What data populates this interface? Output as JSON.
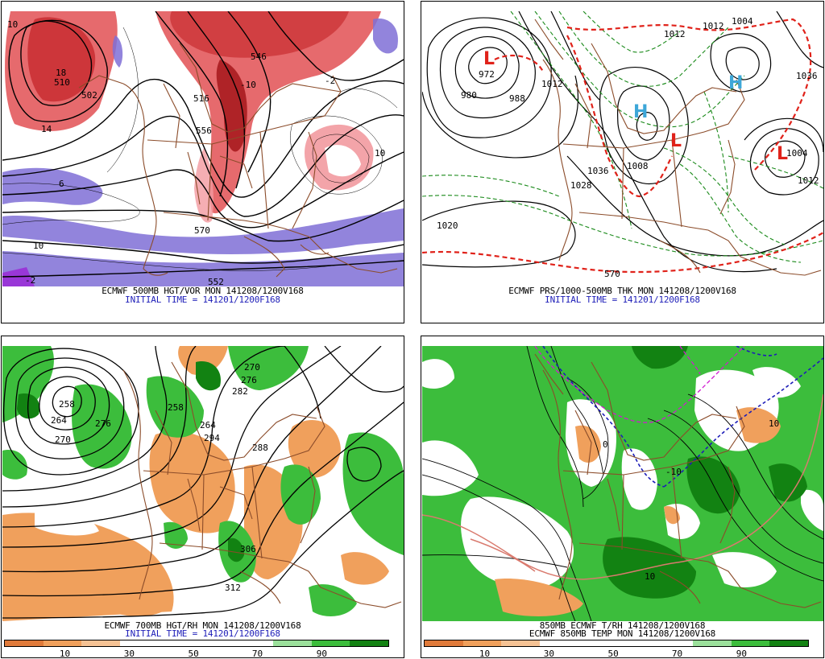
{
  "panels": {
    "tl": {
      "caption_line1": "ECMWF 500MB HGT/VOR MON 141208/1200V168",
      "caption_line2": "INITIAL TIME = 141201/1200F168",
      "contour_labels": [
        "10",
        "18",
        "510",
        "502",
        "516",
        "556",
        "546",
        "570",
        "552",
        "-2",
        "6",
        "10",
        "14",
        "-10",
        "10",
        "-2"
      ]
    },
    "tr": {
      "caption_line1": "ECMWF PRS/1000-500MB THK MON 141208/1200V168",
      "caption_line2": "INITIAL TIME = 141201/1200F168",
      "contour_labels": [
        "972",
        "980",
        "988",
        "1012",
        "1036",
        "1028",
        "1008",
        "1020",
        "1004",
        "1012",
        "1036",
        "1012",
        "570",
        "1012",
        "1004"
      ],
      "pressure_centers": [
        "L",
        "L",
        "L",
        "H",
        "H"
      ]
    },
    "bl": {
      "caption_line1": "ECMWF 700MB HGT/RH MON 141208/1200V168",
      "caption_line2": "INITIAL TIME = 141201/1200F168",
      "contour_labels": [
        "258",
        "264",
        "270",
        "276",
        "282",
        "276",
        "270",
        "264",
        "258",
        "288",
        "306",
        "312",
        "294"
      ],
      "colorbar_ticks": [
        "10",
        "30",
        "50",
        "70",
        "90"
      ]
    },
    "br": {
      "caption_line1": "850MB ECMWF T/RH 141208/1200V168",
      "caption_line2": "ECMWF 850MB TEMP MON 141208/1200V168",
      "contour_labels": [
        "0",
        "-10",
        "10",
        "10"
      ],
      "colorbar_ticks": [
        "10",
        "30",
        "50",
        "70",
        "90"
      ]
    }
  },
  "colors": {
    "caption_blue": "#1d1db8",
    "vorticity_red": "#e0484c",
    "vorticity_red_dark": "#b8161c",
    "vorticity_purple": "#7f6fd6",
    "thickness_red": "#e0221a",
    "thickness_green": "#1a8a1a",
    "rh_dry_orange": "#f0a05c",
    "rh_moist_green": "#3cbd3c",
    "rh_wet_green": "#128212",
    "geography_brown": "#8b4c2a"
  },
  "colorbar_colors": [
    "#e07a3a",
    "#f0a05c",
    "#f5c294",
    "#ffffff",
    "#ffffff",
    "#ffffff",
    "#ffffff",
    "#9be09b",
    "#3cbd3c",
    "#128212"
  ]
}
